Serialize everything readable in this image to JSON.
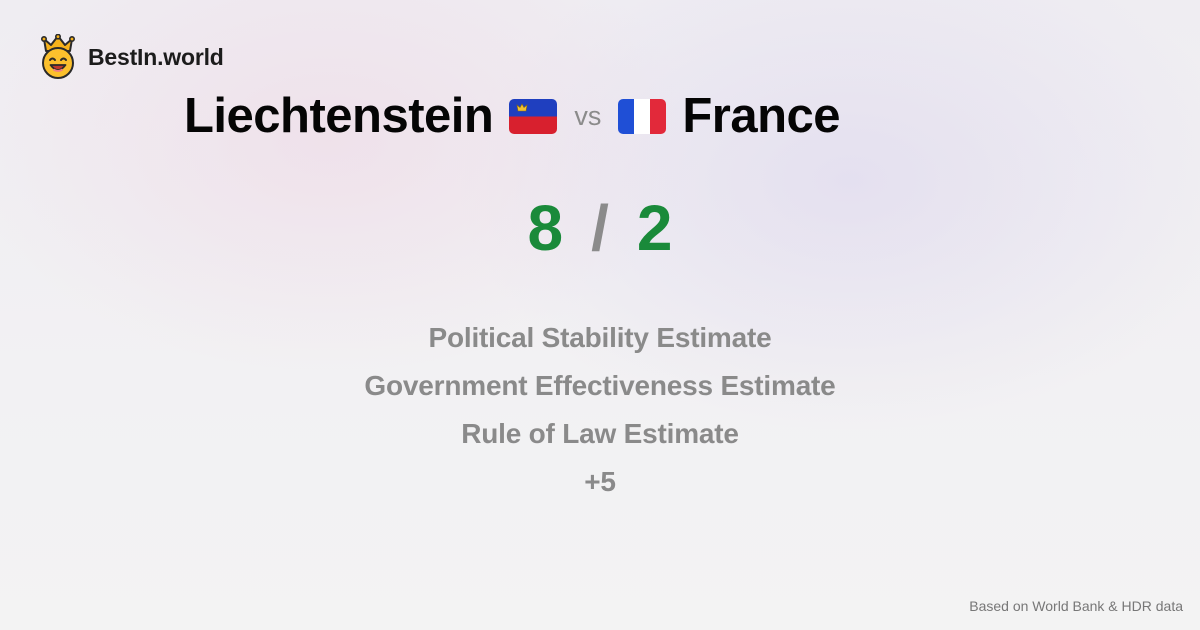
{
  "brand": {
    "name": "BestIn.world",
    "logo_icon": "crowned-smiley-icon"
  },
  "comparison": {
    "left_country": "Liechtenstein",
    "left_flag_icon": "liechtenstein-flag-icon",
    "separator": "vs",
    "right_country": "France",
    "right_flag_icon": "france-flag-icon"
  },
  "score": {
    "left": "8",
    "divider": "/",
    "right": "2",
    "color": "#1a8a3a"
  },
  "criteria": [
    "Political Stability Estimate",
    "Government Effectiveness Estimate",
    "Rule of Law Estimate",
    "+5"
  ],
  "footer": {
    "source_text": "Based on World Bank & HDR data"
  }
}
